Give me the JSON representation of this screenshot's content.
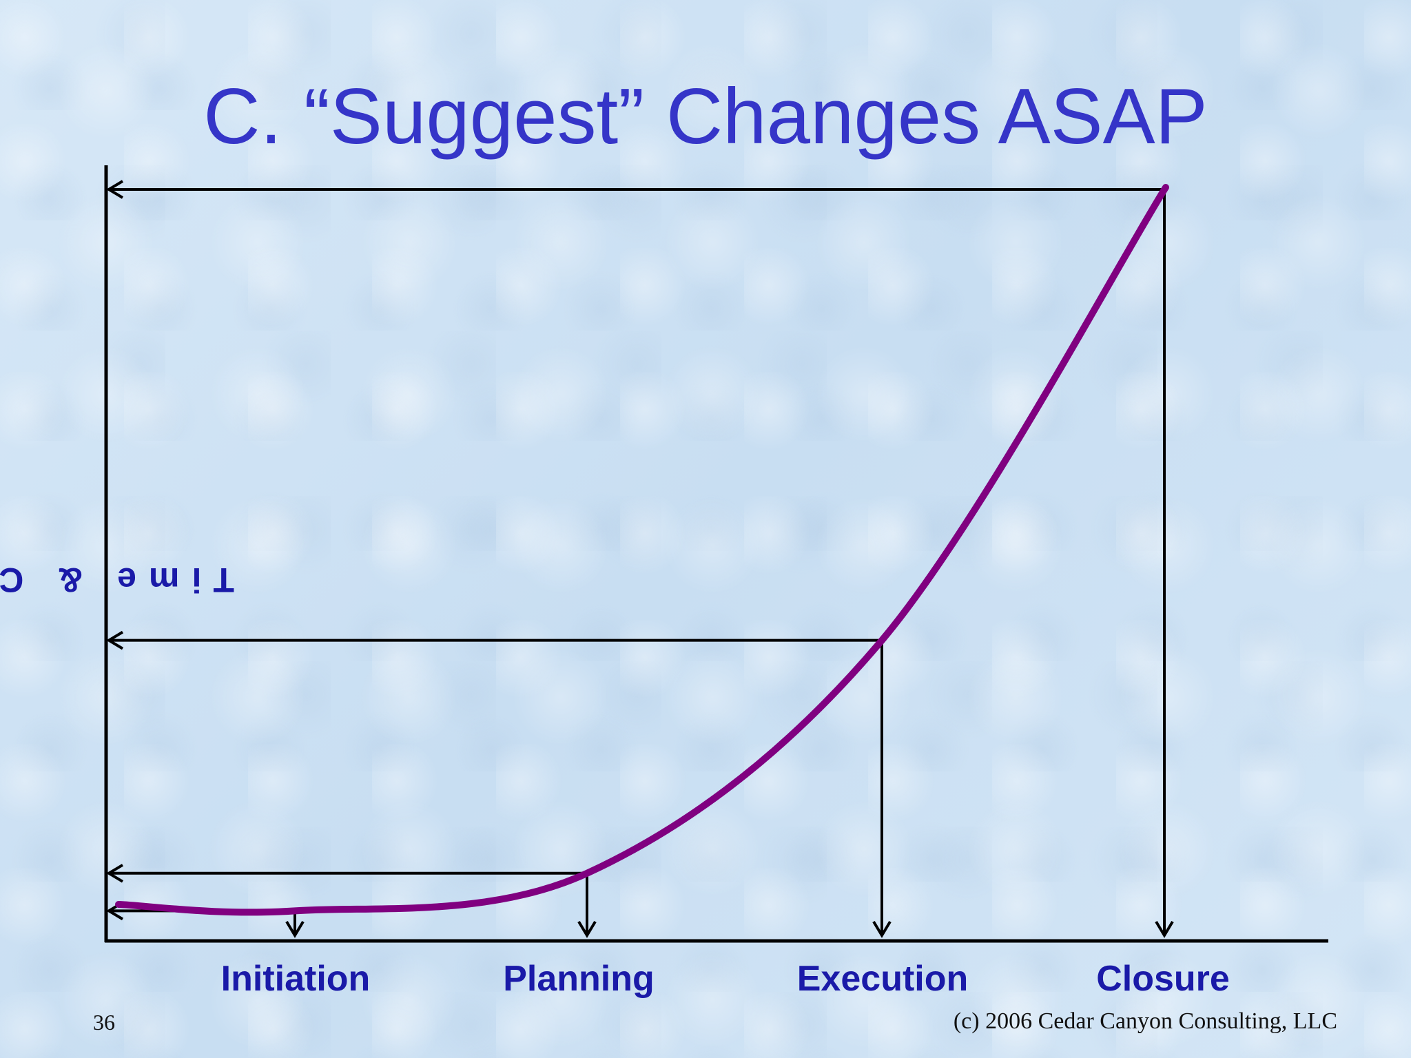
{
  "slide": {
    "title": "C. “Suggest” Changes ASAP",
    "number": "36",
    "copyright": "(c) 2006 Cedar Canyon Consulting, LLC"
  },
  "chart_data": {
    "type": "line",
    "title": "C. “Suggest” Changes ASAP",
    "xlabel": "",
    "ylabel": "Time & C",
    "categories": [
      "Initiation",
      "Planning",
      "Execution",
      "Closure"
    ],
    "series": [
      {
        "values": [
          0.04,
          0.09,
          0.4,
          1.0
        ]
      }
    ],
    "ylim": [
      0,
      1
    ],
    "grid": false,
    "legend": "none",
    "colors": {
      "curve": "#800080",
      "axis": "#000000",
      "title": "#3535c8",
      "labels": "#1a1aa8"
    }
  }
}
